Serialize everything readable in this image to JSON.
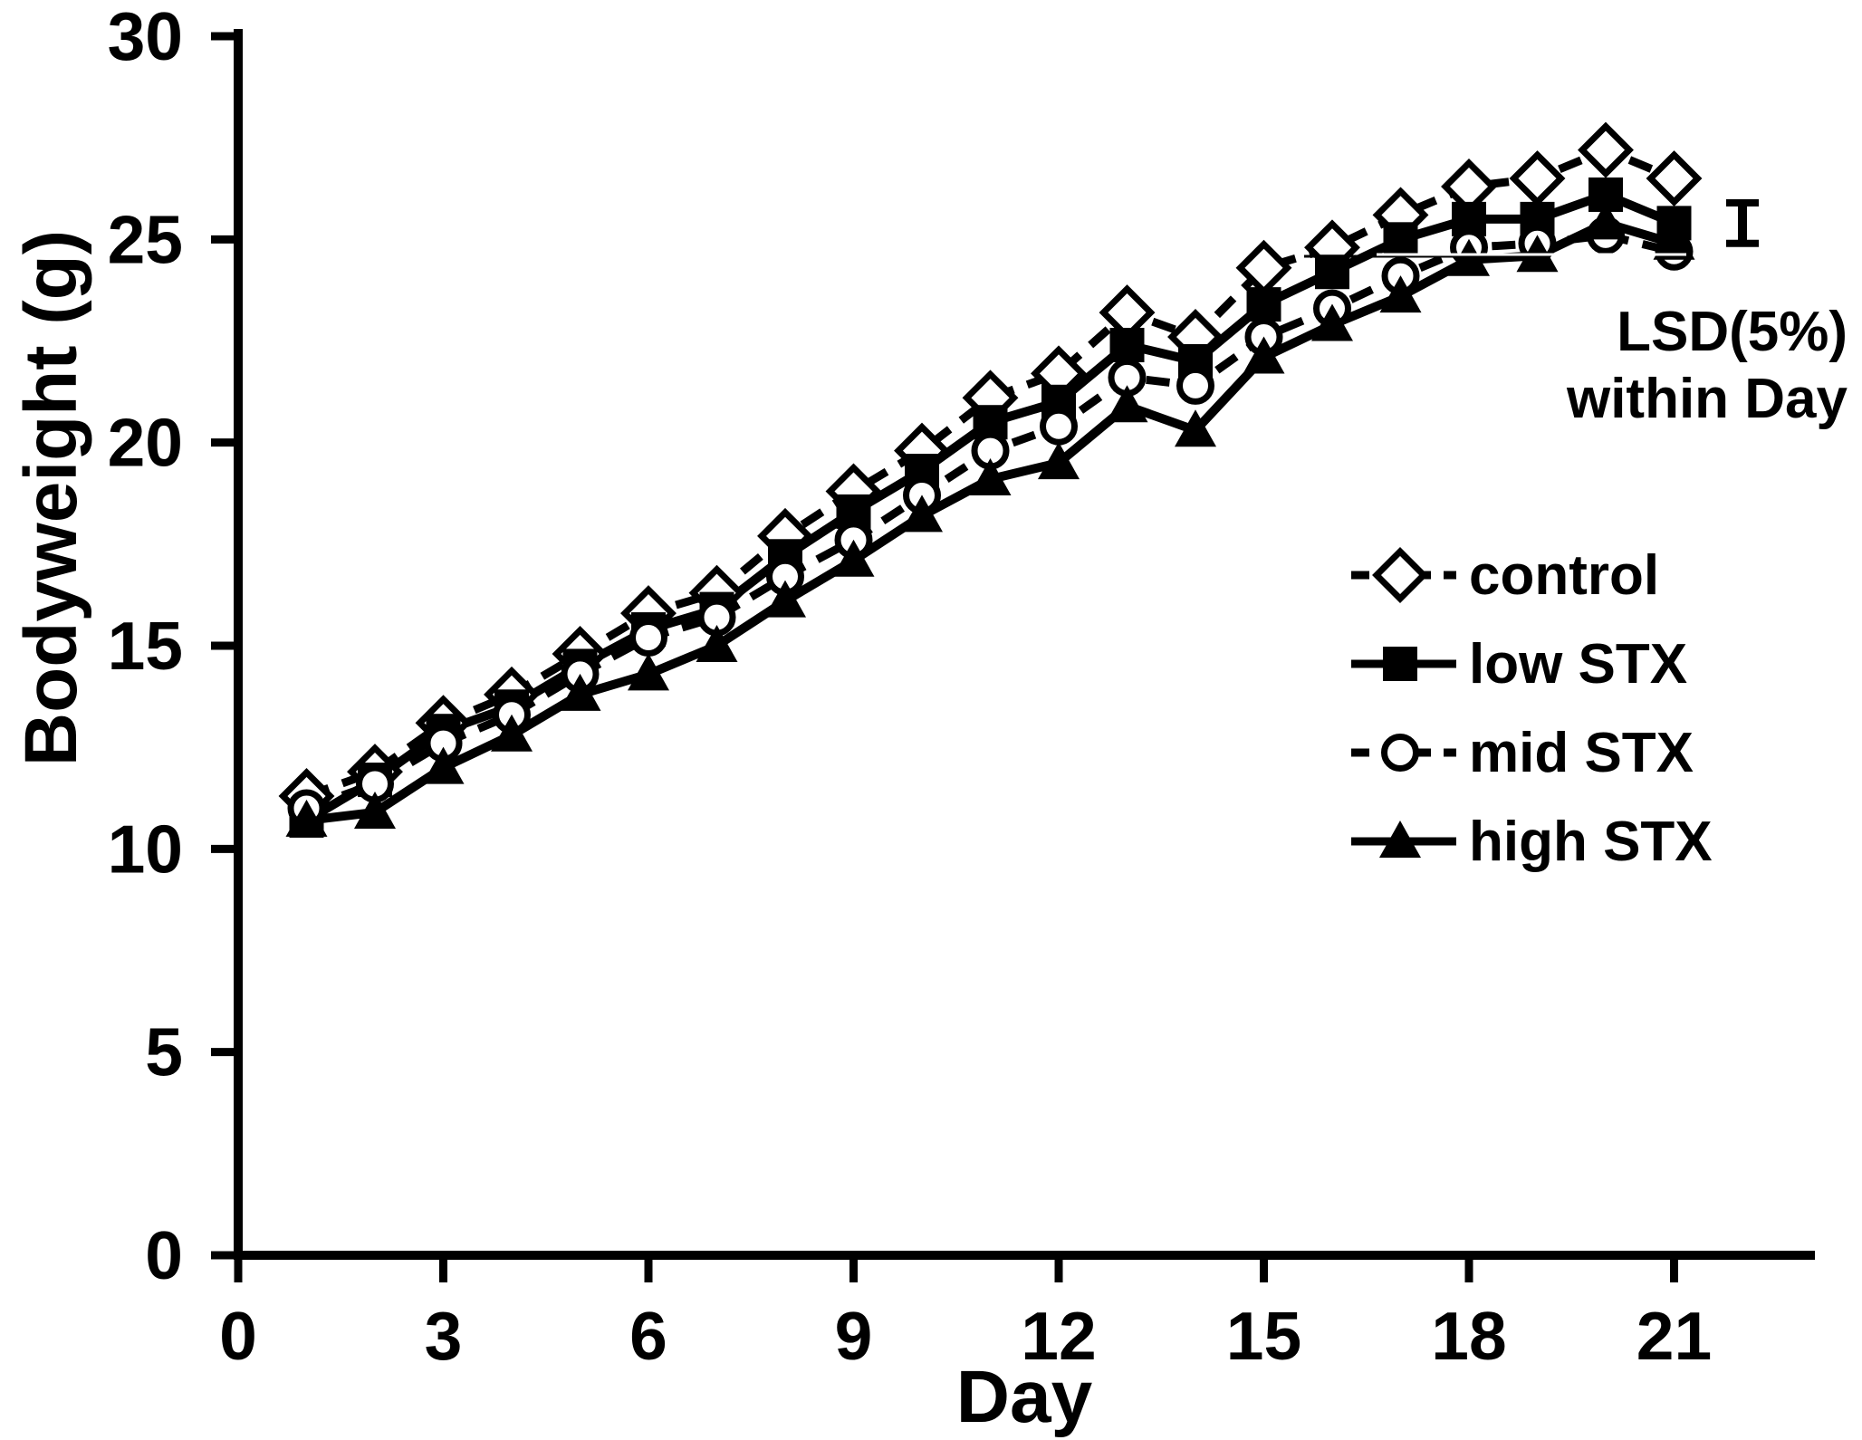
{
  "colors": {
    "foreground": "#000000",
    "background": "#ffffff"
  },
  "chart_data": {
    "type": "line",
    "title": "",
    "xlabel": "Day",
    "ylabel": "Bodyweight (g)",
    "xlim": [
      0,
      23
    ],
    "ylim": [
      0,
      30
    ],
    "xticks": [
      0,
      3,
      6,
      9,
      12,
      15,
      18,
      21
    ],
    "yticks": [
      0,
      5,
      10,
      15,
      20,
      25,
      30
    ],
    "grid": false,
    "legend_position": "right-middle",
    "x": [
      1,
      2,
      3,
      4,
      5,
      6,
      7,
      8,
      9,
      10,
      11,
      12,
      13,
      14,
      15,
      16,
      17,
      18,
      19,
      20,
      21
    ],
    "series": [
      {
        "name": "control",
        "linestyle": "dashed",
        "marker": "diamond-open",
        "values": [
          11.3,
          11.9,
          13.1,
          13.8,
          14.8,
          15.8,
          16.3,
          17.7,
          18.8,
          19.8,
          21.1,
          21.7,
          23.2,
          22.6,
          24.3,
          24.8,
          25.6,
          26.3,
          26.5,
          27.2,
          26.5
        ]
      },
      {
        "name": "low STX",
        "linestyle": "solid",
        "marker": "square-filled",
        "values": [
          10.7,
          11.7,
          12.9,
          13.5,
          14.5,
          15.4,
          15.9,
          17.2,
          18.3,
          19.3,
          20.5,
          21.0,
          22.4,
          22.0,
          23.4,
          24.2,
          25.0,
          25.5,
          25.5,
          26.1,
          25.4
        ]
      },
      {
        "name": "mid STX",
        "linestyle": "dashed",
        "marker": "circle-open",
        "values": [
          11.0,
          11.6,
          12.6,
          13.3,
          14.3,
          15.2,
          15.7,
          16.7,
          17.6,
          18.7,
          19.8,
          20.4,
          21.6,
          21.4,
          22.6,
          23.3,
          24.1,
          24.8,
          24.9,
          25.1,
          24.7
        ]
      },
      {
        "name": "high STX",
        "linestyle": "solid",
        "marker": "triangle-filled",
        "values": [
          10.7,
          10.9,
          12.0,
          12.8,
          13.8,
          14.3,
          15.0,
          16.1,
          17.1,
          18.2,
          19.1,
          19.5,
          20.9,
          20.3,
          22.1,
          22.9,
          23.6,
          24.5,
          24.6,
          25.4,
          24.9
        ]
      }
    ],
    "annotation": {
      "error_bar": {
        "label_line1": "LSD(5%)",
        "label_line2": "within Day",
        "day": 22,
        "value": 25.4,
        "half_height": 0.5
      }
    }
  }
}
